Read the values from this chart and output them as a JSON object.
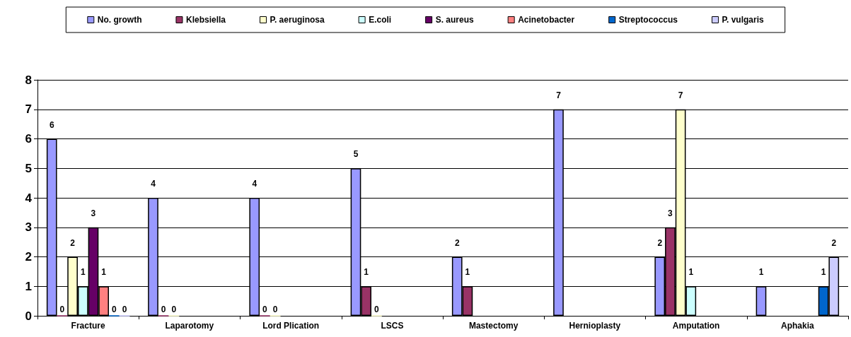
{
  "chart_data": {
    "type": "bar",
    "categories": [
      "Fracture",
      "Laparotomy",
      "Lord Plication",
      "LSCS",
      "Mastectomy",
      "Hernioplasty",
      "Amputation",
      "Aphakia"
    ],
    "series": [
      {
        "name": "No. growth",
        "color": "#9999ff",
        "values": [
          6,
          4,
          4,
          5,
          2,
          7,
          2,
          1
        ]
      },
      {
        "name": "Klebsiella",
        "color": "#993366",
        "values": [
          0,
          0,
          0,
          1,
          1,
          null,
          3,
          null
        ]
      },
      {
        "name": "P. aeruginosa",
        "color": "#ffffcc",
        "values": [
          2,
          0,
          0,
          0,
          null,
          null,
          7,
          null
        ]
      },
      {
        "name": "E.coli",
        "color": "#ccffff",
        "values": [
          1,
          null,
          null,
          null,
          null,
          null,
          1,
          null
        ]
      },
      {
        "name": "S. aureus",
        "color": "#660066",
        "values": [
          3,
          null,
          null,
          null,
          null,
          null,
          null,
          null
        ]
      },
      {
        "name": "Acinetobacter",
        "color": "#ff8080",
        "values": [
          1,
          null,
          null,
          null,
          null,
          null,
          null,
          null
        ]
      },
      {
        "name": "Streptococcus",
        "color": "#0066cc",
        "values": [
          0,
          null,
          null,
          null,
          null,
          null,
          null,
          1
        ]
      },
      {
        "name": "P. vulgaris",
        "color": "#ccccff",
        "values": [
          0,
          null,
          null,
          null,
          null,
          null,
          null,
          2
        ]
      }
    ],
    "ylim": [
      0,
      8
    ],
    "yticks": [
      0,
      1,
      2,
      3,
      4,
      5,
      6,
      7,
      8
    ],
    "grid": "y",
    "legend": "top",
    "data_labels": true
  }
}
